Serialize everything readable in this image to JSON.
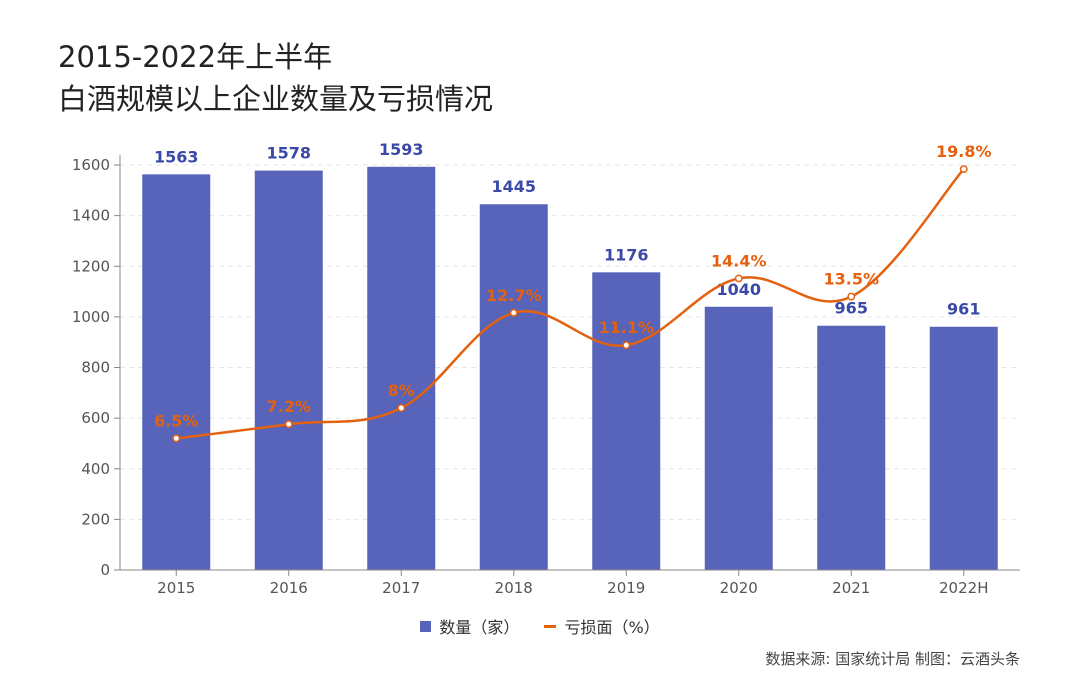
{
  "title": {
    "line1": "2015-2022年上半年",
    "line2": "白酒规模以上企业数量及亏损情况"
  },
  "source": "数据来源: 国家统计局  制图：云酒头条",
  "colors": {
    "bar": "#5864b9",
    "bar_label": "#3a49a8",
    "line": "#e4610f",
    "grid": "#e6e6e6"
  },
  "chart_data": {
    "type": "bar",
    "categories": [
      "2015",
      "2016",
      "2017",
      "2018",
      "2019",
      "2020",
      "2021",
      "2022H"
    ],
    "series": [
      {
        "name": "数量（家）",
        "type": "bar",
        "values": [
          1563,
          1578,
          1593,
          1445,
          1176,
          1040,
          965,
          961
        ],
        "labels": [
          "1563",
          "1578",
          "1593",
          "1445",
          "1176",
          "1040",
          "965",
          "961"
        ]
      },
      {
        "name": "亏损面（%）",
        "type": "line",
        "values": [
          6.5,
          7.2,
          8.0,
          12.7,
          11.1,
          14.4,
          13.5,
          19.8
        ],
        "labels": [
          "6.5%",
          "7.2%",
          "8%",
          "12.7%",
          "11.1%",
          "14.4%",
          "13.5%",
          "19.8%"
        ]
      }
    ],
    "yticks": [
      "0",
      "200",
      "400",
      "600",
      "800",
      "1000",
      "1200",
      "1400",
      "1600"
    ],
    "ylim": [
      0,
      1600
    ],
    "y2lim": [
      0,
      20
    ],
    "legend": {
      "bar_label": "数量（家）",
      "line_label": "亏损面（%）",
      "position": "bottom-center"
    }
  }
}
